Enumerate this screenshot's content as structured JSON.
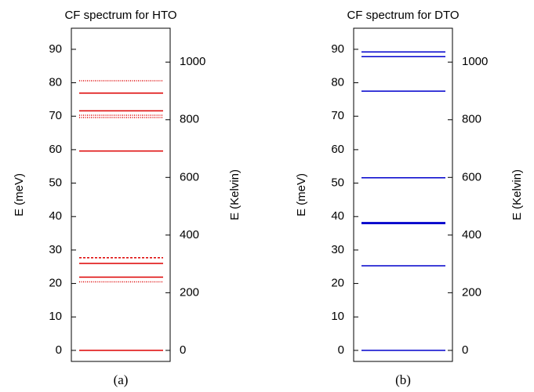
{
  "chart_data": [
    {
      "type": "levels",
      "title": "CF spectrum for HTO",
      "ylabel": "E (meV)",
      "y2label": "E (Kelvin)",
      "caption": "(a)",
      "color": "#dd0000",
      "values": [
        0,
        20.5,
        21.9,
        26.0,
        27.7,
        59.6,
        69.6,
        70.3,
        71.6,
        76.9,
        80.6
      ],
      "styles": [
        "solid",
        "dotted",
        "solid",
        "solid",
        "dashed",
        "solid",
        "dotted",
        "dotted",
        "solid",
        "solid",
        "dotted"
      ],
      "ylim": [
        -3.3,
        96.3
      ],
      "yticks": [
        0,
        10,
        20,
        30,
        40,
        50,
        60,
        70,
        80,
        90
      ],
      "y2lim": [
        -38.3,
        1117.5
      ],
      "y2ticks": [
        0,
        200,
        400,
        600,
        800,
        1000
      ]
    },
    {
      "type": "levels",
      "title": "CF spectrum for DTO",
      "ylabel": "E (meV)",
      "y2label": "E (Kelvin)",
      "caption": "(b)",
      "color": "#0000cc",
      "values": [
        0,
        25.3,
        37.9,
        38.2,
        51.6,
        77.5,
        87.8,
        89.2
      ],
      "styles": [
        "solid",
        "solid",
        "solid",
        "solid",
        "solid",
        "solid",
        "solid",
        "solid"
      ],
      "ylim": [
        -3.3,
        96.3
      ],
      "yticks": [
        0,
        10,
        20,
        30,
        40,
        50,
        60,
        70,
        80,
        90
      ],
      "y2lim": [
        -38.3,
        1117.5
      ],
      "y2ticks": [
        0,
        200,
        400,
        600,
        800,
        1000
      ]
    }
  ]
}
